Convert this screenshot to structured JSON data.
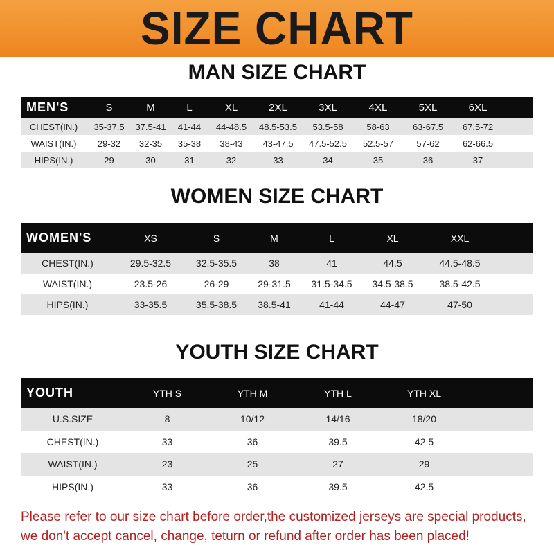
{
  "banner": {
    "title": "SIZE CHART"
  },
  "men": {
    "title": "MAN SIZE CHART",
    "header": [
      "MEN'S",
      "S",
      "M",
      "L",
      "XL",
      "2XL",
      "3XL",
      "4XL",
      "5XL",
      "6XL"
    ],
    "rows": [
      [
        "CHEST(IN.)",
        "35-37.5",
        "37.5-41",
        "41-44",
        "44-48.5",
        "48.5-53.5",
        "53.5-58",
        "58-63",
        "63-67.5",
        "67.5-72"
      ],
      [
        "WAIST(IN.)",
        "29-32",
        "32-35",
        "35-38",
        "38-43",
        "43-47.5",
        "47.5-52.5",
        "52.5-57",
        "57-62",
        "62-66.5"
      ],
      [
        "HIPS(IN.)",
        "29",
        "30",
        "31",
        "32",
        "33",
        "34",
        "35",
        "36",
        "37"
      ]
    ]
  },
  "women": {
    "title": "WOMEN SIZE CHART",
    "header": [
      "WOMEN'S",
      "XS",
      "S",
      "M",
      "L",
      "XL",
      "XXL"
    ],
    "rows": [
      [
        "CHEST(IN.)",
        "29.5-32.5",
        "32.5-35.5",
        "38",
        "41",
        "44.5",
        "44.5-48.5"
      ],
      [
        "WAIST(IN.)",
        "23.5-26",
        "26-29",
        "29-31.5",
        "31.5-34.5",
        "34.5-38.5",
        "38.5-42.5"
      ],
      [
        "HIPS(IN.)",
        "33-35.5",
        "35.5-38.5",
        "38.5-41",
        "41-44",
        "44-47",
        "47-50"
      ]
    ]
  },
  "youth": {
    "title": "YOUTH SIZE CHART",
    "header": [
      "YOUTH",
      "YTH S",
      "YTH M",
      "YTH L",
      "YTH XL"
    ],
    "rows": [
      [
        "U.S.SIZE",
        "8",
        "10/12",
        "14/16",
        "18/20"
      ],
      [
        "CHEST(IN.)",
        "33",
        "36",
        "39.5",
        "42.5"
      ],
      [
        "WAIST(IN.)",
        "23",
        "25",
        "27",
        "29"
      ],
      [
        "HIPS(IN.)",
        "33",
        "36",
        "39.5",
        "42.5"
      ]
    ]
  },
  "notice": [
    "Please refer to our size chart before order,the customized jerseys are special products,",
    "we don't accept cancel, change, teturn or refund after order has been placed!"
  ]
}
